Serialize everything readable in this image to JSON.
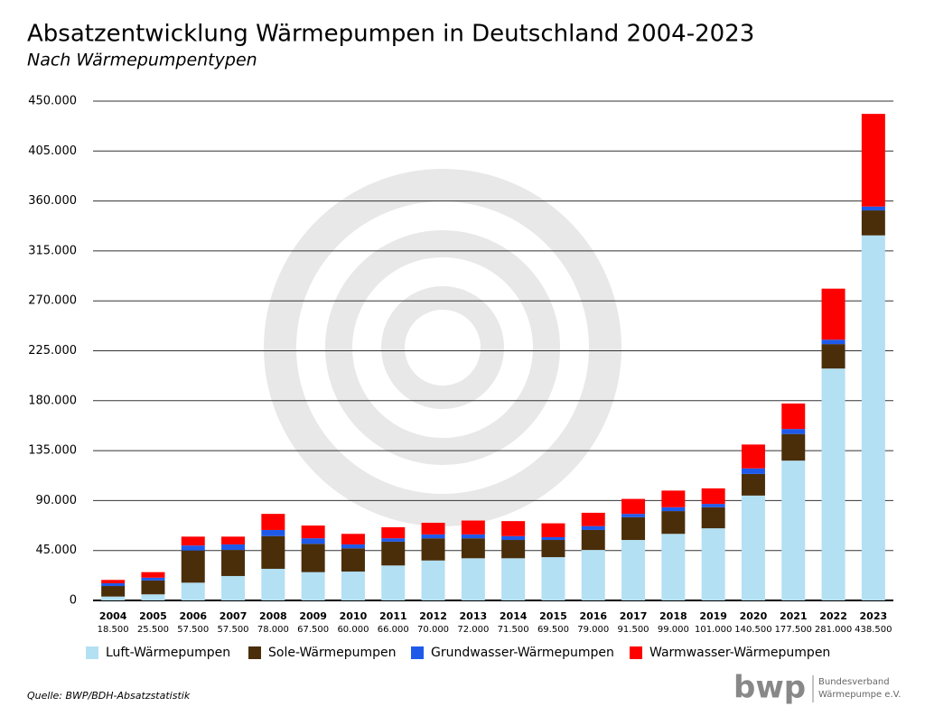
{
  "chart_data": {
    "type": "bar",
    "stacked": true,
    "title": "Absatzentwicklung Wärmepumpen in Deutschland 2004-2023",
    "subtitle": "Nach Wärmepumpentypen",
    "source": "Quelle: BWP/BDH-Absatzstatistik",
    "logo": {
      "text": "bwp",
      "line1": "Bundesverband",
      "line2": "Wärmepumpe e.V."
    },
    "categories": [
      "2004",
      "2005",
      "2006",
      "2007",
      "2008",
      "2009",
      "2010",
      "2011",
      "2012",
      "2013",
      "2014",
      "2015",
      "2016",
      "2017",
      "2018",
      "2019",
      "2020",
      "2021",
      "2022",
      "2023"
    ],
    "totals": [
      {
        "value": 18500,
        "label": "18.500"
      },
      {
        "value": 25500,
        "label": "25.500"
      },
      {
        "value": 57500,
        "label": "57.500"
      },
      {
        "value": 57500,
        "label": "57.500"
      },
      {
        "value": 78000,
        "label": "78.000"
      },
      {
        "value": 67500,
        "label": "67.500"
      },
      {
        "value": 60000,
        "label": "60.000"
      },
      {
        "value": 66000,
        "label": "66.000"
      },
      {
        "value": 70000,
        "label": "70.000"
      },
      {
        "value": 72000,
        "label": "72.000"
      },
      {
        "value": 71500,
        "label": "71.500"
      },
      {
        "value": 69500,
        "label": "69.500"
      },
      {
        "value": 79000,
        "label": "79.000"
      },
      {
        "value": 91500,
        "label": "91.500"
      },
      {
        "value": 99000,
        "label": "99.000"
      },
      {
        "value": 101000,
        "label": "101.000"
      },
      {
        "value": 140500,
        "label": "140.500"
      },
      {
        "value": 177500,
        "label": "177.500"
      },
      {
        "value": 281000,
        "label": "281.000"
      },
      {
        "value": 438500,
        "label": "438.500"
      }
    ],
    "series": [
      {
        "name": "Luft-Wärmepumpen",
        "color": "#b3e0f3",
        "values": [
          3500,
          5500,
          16000,
          22000,
          28500,
          25500,
          26000,
          31500,
          36000,
          38000,
          38000,
          39000,
          45500,
          54500,
          60000,
          65000,
          94500,
          126000,
          209000,
          329000
        ]
      },
      {
        "name": "Sole-Wärmepumpen",
        "color": "#4a2e0a",
        "values": [
          9500,
          12500,
          29000,
          23500,
          29500,
          25500,
          21000,
          21500,
          20000,
          18000,
          16500,
          15500,
          18000,
          20500,
          20500,
          19000,
          19500,
          24000,
          22000,
          22500
        ]
      },
      {
        "name": "Grundwasser-Wärmepumpen",
        "color": "#1e5aea",
        "values": [
          2500,
          2500,
          4500,
          5000,
          5500,
          5000,
          3500,
          3000,
          3500,
          3500,
          3500,
          2500,
          3500,
          3000,
          3500,
          3000,
          5000,
          4500,
          4000,
          3500
        ]
      },
      {
        "name": "Warmwasser-Wärmepumpen",
        "color": "#ff0000",
        "values": [
          3000,
          5000,
          8000,
          7000,
          14500,
          11500,
          9500,
          10000,
          10500,
          12500,
          13500,
          12500,
          12000,
          13500,
          15000,
          14000,
          21500,
          23000,
          46000,
          83500
        ]
      }
    ],
    "ylim": [
      0,
      450000
    ],
    "yticks": [
      0,
      {
        "value": 45000,
        "label": "45.000"
      },
      {
        "value": 90000,
        "label": "90.000"
      },
      {
        "value": 135000,
        "label": "135.000"
      },
      {
        "value": 180000,
        "label": "180.000"
      },
      {
        "value": 225000,
        "label": "225.000"
      },
      {
        "value": 270000,
        "label": "270.000"
      },
      {
        "value": 315000,
        "label": "315.000"
      },
      {
        "value": 360000,
        "label": "360.000"
      },
      {
        "value": 405000,
        "label": "405.000"
      },
      {
        "value": 450000,
        "label": "450.000"
      }
    ],
    "grid": true,
    "legend": "bottom"
  }
}
